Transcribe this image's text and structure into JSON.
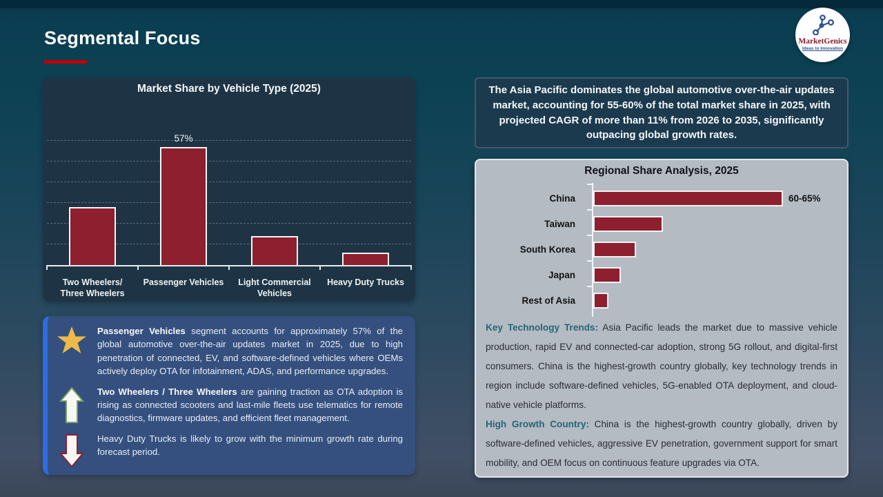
{
  "slide": {
    "title": "Segmental Focus"
  },
  "logo": {
    "brand": "MarketGenics",
    "tagline": "Ideas to Innovation",
    "icon": "molecule-icon"
  },
  "colors": {
    "accent_red": "#c00000",
    "bar_maroon": "#8e1f2e",
    "panel_navy": "#1e3444",
    "callout_navy": "#1c3a4e",
    "gray_panel": "#b4bbc3",
    "insight_blue": "#35507e",
    "insight_stripe": "#2e6ce0",
    "teal_lead": "#256577",
    "star_gold": "#ecb94a"
  },
  "chart_data": [
    {
      "type": "bar",
      "orientation": "vertical",
      "title": "Market Share by Vehicle Type (2025)",
      "categories": [
        "Two Wheelers/ Three Wheelers",
        "Passenger Vehicles",
        "Light Commercial Vehicles",
        "Heavy Duty Trucks"
      ],
      "values": [
        28,
        57,
        14,
        6
      ],
      "data_labels": [
        "",
        "57%",
        "",
        ""
      ],
      "xlabel": "",
      "ylabel": "",
      "ylim": [
        0,
        60
      ],
      "gridline_step": 10,
      "grid": "dashed-horizontal",
      "legend": "none"
    },
    {
      "type": "bar",
      "orientation": "horizontal",
      "title": "Regional Share Analysis, 2025",
      "categories": [
        "China",
        "Taiwan",
        "South Korea",
        "Japan",
        "Rest of Asia"
      ],
      "values": [
        62.5,
        23,
        14,
        9,
        5
      ],
      "data_labels": [
        "60-65%",
        "",
        "",
        "",
        ""
      ],
      "xlabel": "",
      "ylabel": "",
      "xlim": [
        0,
        85
      ],
      "grid": "off",
      "legend": "none"
    }
  ],
  "callout": {
    "text": "The Asia Pacific dominates the global automotive over-the-air updates market, accounting for 55-60% of the total market share in 2025, with projected CAGR of more than 11% from 2026 to 2035, significantly outpacing global growth rates."
  },
  "insights": [
    {
      "icon": "star-icon",
      "lead": "Passenger Vehicles",
      "text": " segment accounts for approximately 57% of the global automotive over-the-air updates market in 2025, due to high penetration of connected, EV, and software-defined vehicles where OEMs actively deploy OTA for infotainment, ADAS, and performance upgrades."
    },
    {
      "icon": "up-arrow-icon",
      "lead": "Two Wheelers / Three Wheelers",
      "text": " are gaining traction as OTA adoption is rising as connected scooters and last-mile fleets use telematics for remote diagnostics, firmware updates, and efficient fleet management."
    },
    {
      "icon": "down-arrow-icon",
      "lead": "",
      "text": "Heavy Duty Trucks is likely to grow with the minimum growth rate during forecast period."
    }
  ],
  "regional_notes": [
    {
      "lead": "Key Technology Trends:",
      "text": " Asia Pacific leads the market due to massive vehicle production, rapid EV and connected-car adoption, strong 5G rollout, and digital-first consumers. China is the highest-growth country globally, key technology trends in region include software-defined vehicles, 5G-enabled OTA deployment, and cloud-native vehicle platforms."
    },
    {
      "lead": "High Growth Country:",
      "text": " China is the highest-growth country globally, driven by software-defined vehicles, aggressive EV penetration, government support for smart mobility, and OEM focus on continuous feature upgrades via OTA."
    }
  ]
}
